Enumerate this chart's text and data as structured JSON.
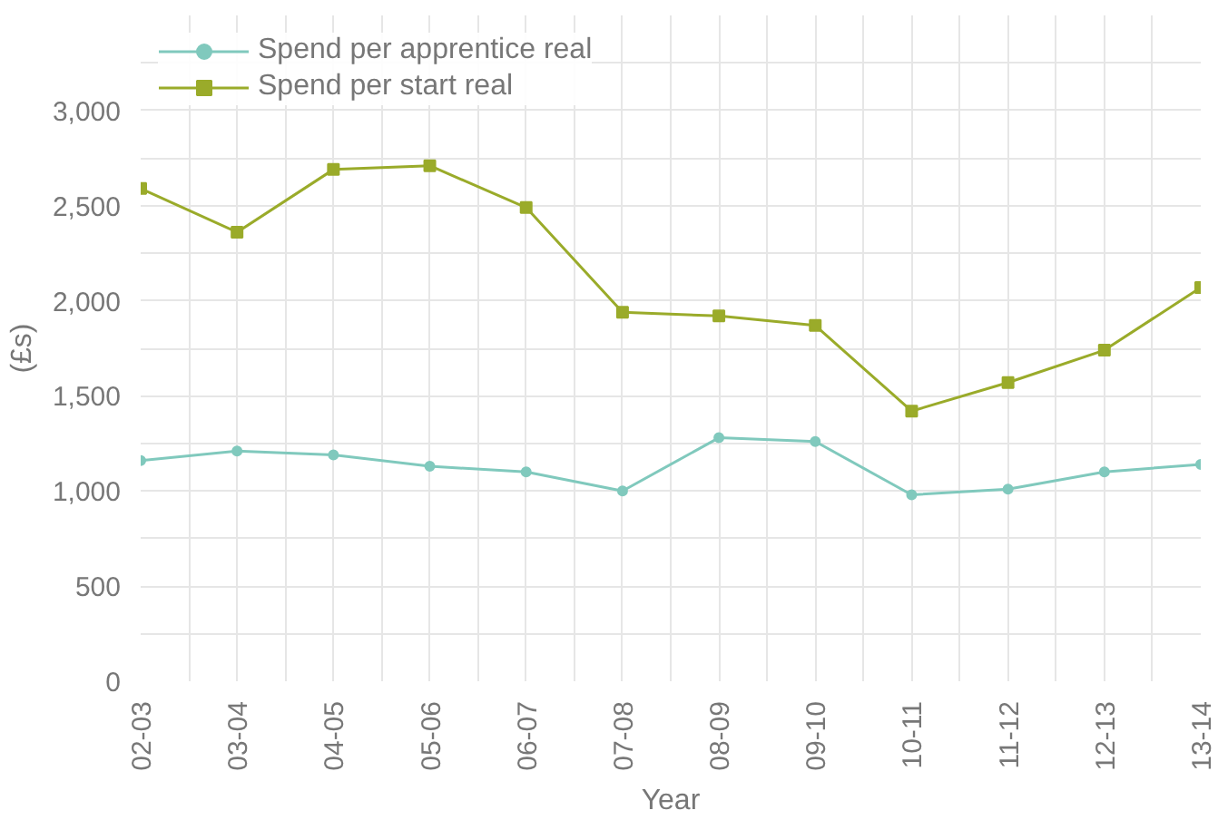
{
  "chart_data": {
    "type": "line",
    "xlabel": "Year",
    "ylabel": "(£s)",
    "categories": [
      "02-03",
      "03-04",
      "04-05",
      "05-06",
      "06-07",
      "07-08",
      "08-09",
      "09-10",
      "10-11",
      "11-12",
      "12-13",
      "13-14"
    ],
    "series": [
      {
        "name": "Spend per apprentice real",
        "color": "#80c9bd",
        "marker": "circle",
        "values": [
          1160,
          1210,
          1190,
          1130,
          1100,
          1000,
          1280,
          1260,
          980,
          1010,
          1100,
          1140
        ]
      },
      {
        "name": "Spend per start real",
        "color": "#9aab2a",
        "marker": "square",
        "values": [
          2590,
          2360,
          2690,
          2710,
          2490,
          1940,
          1920,
          1870,
          1420,
          1570,
          1740,
          2070
        ]
      }
    ],
    "ylim": [
      0,
      3500
    ],
    "yticks": [
      0,
      {
        "value": 250,
        "label": null
      },
      500,
      {
        "value": 750,
        "label": null
      },
      {
        "value": 1000,
        "label": "1,000"
      },
      {
        "value": 1250,
        "label": null
      },
      {
        "value": 1500,
        "label": "1,500"
      },
      {
        "value": 1750,
        "label": null
      },
      {
        "value": 2000,
        "label": "2,000"
      },
      {
        "value": 2250,
        "label": null
      },
      {
        "value": 2500,
        "label": "2,500"
      },
      {
        "value": 2750,
        "label": null
      },
      {
        "value": 3000,
        "label": "3,000"
      },
      {
        "value": 3250,
        "label": null
      }
    ],
    "grid": true,
    "legend": "top left",
    "line_style": "solid"
  }
}
